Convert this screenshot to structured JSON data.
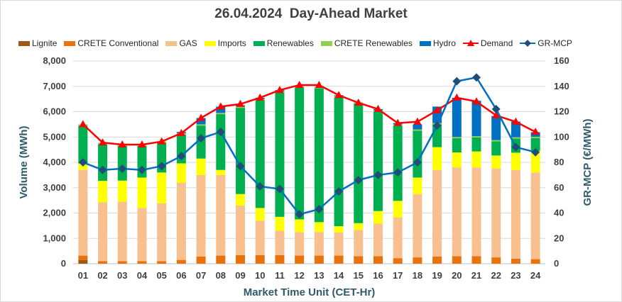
{
  "chart_data": {
    "type": "bar",
    "stacked": true,
    "title": "26.04.2024  Day-Ahead Market",
    "xlabel": "Market Time Unit (CET-Hr)",
    "ylabel": "Volume (MWh)",
    "y2label": "GR-MCP (€/MWh)",
    "ylim": [
      0,
      8000
    ],
    "y2lim": [
      0,
      160
    ],
    "yticks": [
      "0",
      "1,000",
      "2,000",
      "3,000",
      "4,000",
      "5,000",
      "6,000",
      "7,000",
      "8,000"
    ],
    "y2ticks": [
      "0",
      "20",
      "40",
      "60",
      "80",
      "100",
      "120",
      "140",
      "160"
    ],
    "grid": true,
    "legend_position": "top",
    "categories": [
      "01",
      "02",
      "03",
      "04",
      "05",
      "06",
      "07",
      "08",
      "09",
      "10",
      "11",
      "12",
      "13",
      "14",
      "15",
      "16",
      "17",
      "18",
      "19",
      "20",
      "21",
      "22",
      "23",
      "24"
    ],
    "series": [
      {
        "name": "Lignite",
        "kind": "bar",
        "color": "#9c5a14",
        "values": [
          150,
          0,
          0,
          0,
          0,
          0,
          0,
          0,
          0,
          0,
          0,
          0,
          0,
          0,
          0,
          0,
          0,
          0,
          0,
          0,
          0,
          0,
          0,
          0
        ]
      },
      {
        "name": "CRETE Conventional",
        "kind": "bar",
        "color": "#e8720c",
        "values": [
          170,
          100,
          100,
          100,
          100,
          150,
          280,
          320,
          340,
          340,
          340,
          320,
          320,
          320,
          300,
          300,
          220,
          250,
          280,
          300,
          300,
          250,
          200,
          180
        ]
      },
      {
        "name": "GAS",
        "kind": "bar",
        "color": "#f8c08f",
        "values": [
          3380,
          2320,
          2350,
          2100,
          2280,
          3050,
          3220,
          3180,
          1960,
          1360,
          960,
          930,
          930,
          910,
          1030,
          1280,
          1610,
          2500,
          3420,
          3500,
          3500,
          3510,
          3500,
          3420
        ]
      },
      {
        "name": "Imports",
        "kind": "bar",
        "color": "#ffff00",
        "values": [
          250,
          850,
          830,
          1200,
          1220,
          760,
          650,
          200,
          450,
          500,
          550,
          500,
          390,
          250,
          270,
          500,
          650,
          650,
          900,
          590,
          630,
          510,
          680,
          850
        ]
      },
      {
        "name": "Renewables",
        "kind": "bar",
        "color": "#00b050",
        "values": [
          1500,
          1450,
          1370,
          1250,
          1180,
          1140,
          1300,
          2200,
          3400,
          4250,
          4900,
          5200,
          5280,
          5090,
          4720,
          3920,
          2970,
          1850,
          900,
          560,
          550,
          560,
          560,
          510
        ]
      },
      {
        "name": "CRETE Renewables",
        "kind": "bar",
        "color": "#92d050",
        "values": [
          50,
          50,
          50,
          50,
          50,
          50,
          50,
          50,
          50,
          50,
          50,
          50,
          60,
          50,
          50,
          50,
          50,
          50,
          50,
          50,
          50,
          50,
          50,
          50
        ]
      },
      {
        "name": "Hydro",
        "kind": "bar",
        "color": "#0070c0",
        "values": [
          0,
          0,
          0,
          0,
          0,
          50,
          250,
          250,
          50,
          50,
          50,
          0,
          0,
          30,
          0,
          50,
          50,
          200,
          650,
          1550,
          1400,
          950,
          620,
          180
        ]
      },
      {
        "name": "Demand",
        "kind": "line",
        "color": "#ff0000",
        "axis": "left",
        "values": [
          5500,
          4780,
          4700,
          4700,
          4820,
          5150,
          5750,
          6200,
          6300,
          6550,
          6850,
          7050,
          7050,
          6650,
          6350,
          6100,
          5550,
          5600,
          6050,
          6550,
          6400,
          5850,
          5600,
          5200
        ]
      },
      {
        "name": "GR-MCP",
        "kind": "line",
        "color": "#1f4e79",
        "axis": "right",
        "values": [
          80,
          74,
          75,
          74,
          77,
          85,
          99,
          104,
          77,
          61,
          59,
          39,
          43,
          57,
          66,
          70,
          72,
          80,
          109,
          144,
          147,
          122,
          92,
          88
        ]
      }
    ]
  }
}
